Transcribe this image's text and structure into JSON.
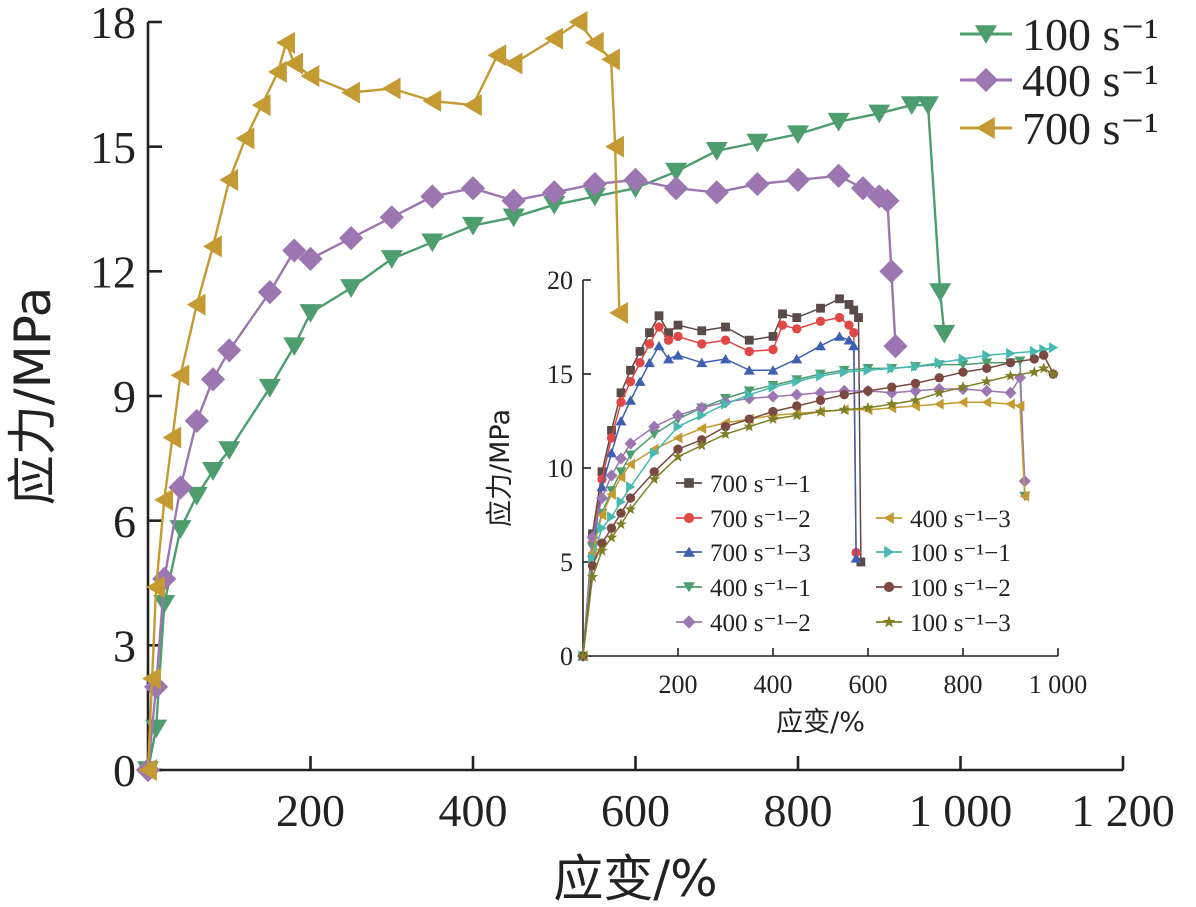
{
  "chart_data": [
    {
      "type": "line",
      "xlabel": "应变/%",
      "ylabel": "应力/MPa",
      "xlim": [
        0,
        1200
      ],
      "ylim": [
        0,
        18
      ],
      "xticks": [
        200,
        400,
        600,
        800,
        1000,
        1200
      ],
      "xtick_labels": [
        "200",
        "400",
        "600",
        "800",
        "1 000",
        "1 200"
      ],
      "yticks": [
        0,
        3,
        6,
        9,
        12,
        15,
        18
      ],
      "ytick_labels": [
        "0",
        "3",
        "6",
        "9",
        "12",
        "15",
        "18"
      ],
      "grid": false,
      "legend_position": "top-right",
      "series": [
        {
          "name": "100 s⁻¹",
          "color": "#4e9d6e",
          "marker": "triangle-down",
          "x": [
            0,
            10,
            20,
            40,
            60,
            80,
            100,
            150,
            180,
            200,
            250,
            300,
            350,
            400,
            450,
            500,
            550,
            600,
            650,
            700,
            750,
            800,
            850,
            900,
            940,
            960,
            975,
            980
          ],
          "y": [
            0,
            1.0,
            4.0,
            5.8,
            6.6,
            7.2,
            7.7,
            9.2,
            10.2,
            11.0,
            11.6,
            12.3,
            12.7,
            13.1,
            13.3,
            13.6,
            13.8,
            14.0,
            14.4,
            14.9,
            15.1,
            15.3,
            15.6,
            15.8,
            16.0,
            16.0,
            11.5,
            10.5
          ]
        },
        {
          "name": "400 s⁻¹",
          "color": "#9b76b1",
          "marker": "diamond",
          "x": [
            0,
            10,
            20,
            40,
            60,
            80,
            100,
            150,
            180,
            200,
            250,
            300,
            350,
            400,
            450,
            500,
            550,
            600,
            650,
            700,
            750,
            800,
            850,
            880,
            900,
            910,
            915,
            920
          ],
          "y": [
            0,
            2.0,
            4.6,
            6.8,
            8.4,
            9.4,
            10.1,
            11.5,
            12.5,
            12.3,
            12.8,
            13.3,
            13.8,
            14.0,
            13.7,
            13.9,
            14.1,
            14.2,
            14.0,
            13.9,
            14.1,
            14.2,
            14.3,
            14.0,
            13.8,
            13.7,
            12.0,
            10.2
          ]
        },
        {
          "name": "700 s⁻¹",
          "color": "#c49a32",
          "marker": "triangle-left",
          "x": [
            0,
            5,
            10,
            20,
            30,
            40,
            60,
            80,
            100,
            120,
            140,
            160,
            170,
            180,
            200,
            250,
            300,
            350,
            400,
            430,
            450,
            500,
            530,
            550,
            570,
            575,
            580
          ],
          "y": [
            0,
            2.2,
            4.4,
            6.5,
            8.0,
            9.5,
            11.2,
            12.6,
            14.2,
            15.2,
            16.0,
            16.8,
            17.5,
            17.0,
            16.7,
            16.3,
            16.4,
            16.1,
            16.0,
            17.2,
            17.0,
            17.6,
            18.0,
            17.5,
            17.1,
            15.0,
            11.0
          ]
        }
      ]
    },
    {
      "type": "line",
      "xlabel": "应变/%",
      "ylabel": "应力/MPa",
      "xlim": [
        0,
        1000
      ],
      "ylim": [
        0,
        20
      ],
      "xticks": [
        200,
        400,
        600,
        800,
        1000
      ],
      "xtick_labels": [
        "200",
        "400",
        "600",
        "800",
        "1 000"
      ],
      "yticks": [
        0,
        5,
        10,
        15,
        20
      ],
      "ytick_labels": [
        "0",
        "5",
        "10",
        "15",
        "20"
      ],
      "grid": false,
      "legend_position": "lower-center",
      "series": [
        {
          "name": "700 s⁻¹−1",
          "color": "#5a4a48",
          "marker": "square",
          "x": [
            0,
            20,
            40,
            60,
            80,
            100,
            120,
            140,
            160,
            180,
            200,
            250,
            300,
            350,
            400,
            420,
            450,
            500,
            540,
            560,
            570,
            580,
            585
          ],
          "y": [
            0,
            6.5,
            9.8,
            12.0,
            14.0,
            15.2,
            16.2,
            17.2,
            18.1,
            17.2,
            17.6,
            17.3,
            17.5,
            16.8,
            17.0,
            18.2,
            18.0,
            18.5,
            19.0,
            18.7,
            18.4,
            18.0,
            5.0
          ]
        },
        {
          "name": "700 s⁻¹−2",
          "color": "#e04848",
          "marker": "circle",
          "x": [
            0,
            20,
            40,
            60,
            80,
            100,
            120,
            140,
            160,
            180,
            200,
            250,
            300,
            350,
            400,
            420,
            450,
            500,
            540,
            560,
            570,
            575
          ],
          "y": [
            0,
            6.0,
            9.4,
            11.6,
            13.5,
            14.6,
            15.6,
            16.6,
            17.5,
            16.8,
            17.0,
            16.6,
            16.8,
            16.2,
            16.3,
            17.6,
            17.4,
            17.8,
            18.0,
            17.6,
            17.2,
            5.5
          ]
        },
        {
          "name": "700 s⁻¹−3",
          "color": "#3f60b0",
          "marker": "triangle-up",
          "x": [
            0,
            20,
            40,
            60,
            80,
            100,
            120,
            140,
            160,
            180,
            200,
            250,
            300,
            350,
            400,
            450,
            500,
            540,
            560,
            570,
            575
          ],
          "y": [
            0,
            5.5,
            9.0,
            10.8,
            12.5,
            13.6,
            14.6,
            15.6,
            16.5,
            15.8,
            16.0,
            15.6,
            15.8,
            15.2,
            15.2,
            15.8,
            16.5,
            17.0,
            16.8,
            16.5,
            5.2
          ]
        },
        {
          "name": "400 s⁻¹−1",
          "color": "#4e9d6e",
          "marker": "triangle-down",
          "x": [
            0,
            20,
            40,
            60,
            80,
            100,
            150,
            200,
            250,
            300,
            350,
            400,
            450,
            500,
            550,
            600,
            650,
            700,
            750,
            800,
            850,
            900,
            920,
            930
          ],
          "y": [
            0,
            5.8,
            7.6,
            8.8,
            9.8,
            10.7,
            11.8,
            12.6,
            13.2,
            13.7,
            14.1,
            14.4,
            14.7,
            15.0,
            15.2,
            15.3,
            15.3,
            15.4,
            15.5,
            15.5,
            15.6,
            15.6,
            15.7,
            8.5
          ]
        },
        {
          "name": "400 s⁻¹−2",
          "color": "#9b76b1",
          "marker": "diamond",
          "x": [
            0,
            20,
            40,
            60,
            80,
            100,
            150,
            200,
            250,
            300,
            350,
            400,
            450,
            500,
            550,
            600,
            650,
            700,
            750,
            800,
            850,
            900,
            920,
            930
          ],
          "y": [
            0,
            6.3,
            8.4,
            9.6,
            10.5,
            11.3,
            12.2,
            12.8,
            13.2,
            13.5,
            13.7,
            13.8,
            13.9,
            14.0,
            14.1,
            14.1,
            14.0,
            14.1,
            14.2,
            14.2,
            14.1,
            14.0,
            14.8,
            9.3
          ]
        },
        {
          "name": "400 s⁻¹−3",
          "color": "#c49a32",
          "marker": "triangle-left",
          "x": [
            0,
            20,
            40,
            60,
            80,
            100,
            150,
            200,
            250,
            300,
            350,
            400,
            450,
            500,
            550,
            600,
            650,
            700,
            750,
            800,
            850,
            900,
            920,
            930
          ],
          "y": [
            0,
            5.5,
            7.5,
            8.6,
            9.5,
            10.2,
            11.0,
            11.6,
            12.1,
            12.4,
            12.6,
            12.8,
            12.9,
            13.0,
            13.1,
            13.1,
            13.2,
            13.3,
            13.4,
            13.5,
            13.5,
            13.4,
            13.3,
            8.5
          ]
        },
        {
          "name": "100 s⁻¹−1",
          "color": "#46b9b0",
          "marker": "triangle-right",
          "x": [
            0,
            20,
            40,
            60,
            80,
            100,
            150,
            200,
            250,
            300,
            350,
            400,
            450,
            500,
            550,
            600,
            650,
            700,
            750,
            800,
            850,
            900,
            950,
            970,
            990
          ],
          "y": [
            0,
            5.2,
            6.8,
            7.4,
            8.2,
            9.0,
            10.8,
            12.2,
            12.8,
            13.4,
            13.9,
            14.3,
            14.6,
            14.9,
            15.1,
            15.2,
            15.3,
            15.4,
            15.6,
            15.8,
            16.0,
            16.1,
            16.2,
            16.3,
            16.4
          ]
        },
        {
          "name": "100 s⁻¹−2",
          "color": "#7a4a42",
          "marker": "circle",
          "x": [
            0,
            20,
            40,
            60,
            80,
            100,
            150,
            200,
            250,
            300,
            350,
            400,
            450,
            500,
            550,
            600,
            650,
            700,
            750,
            800,
            850,
            900,
            950,
            970,
            990
          ],
          "y": [
            0,
            4.8,
            6.0,
            6.8,
            7.6,
            8.4,
            9.8,
            11.0,
            11.5,
            12.2,
            12.6,
            13.0,
            13.3,
            13.6,
            13.9,
            14.1,
            14.3,
            14.5,
            14.8,
            15.1,
            15.3,
            15.6,
            15.8,
            16.0,
            15.0
          ]
        },
        {
          "name": "100 s⁻¹−3",
          "color": "#7f7f28",
          "marker": "star",
          "x": [
            0,
            20,
            40,
            60,
            80,
            100,
            150,
            200,
            250,
            300,
            350,
            400,
            450,
            500,
            550,
            600,
            650,
            700,
            750,
            800,
            850,
            900,
            950,
            970,
            990
          ],
          "y": [
            0,
            4.2,
            5.6,
            6.3,
            7.0,
            7.8,
            9.4,
            10.6,
            11.2,
            11.8,
            12.2,
            12.6,
            12.8,
            13.0,
            13.1,
            13.2,
            13.4,
            13.6,
            14.0,
            14.3,
            14.6,
            14.9,
            15.1,
            15.3,
            15.0
          ]
        }
      ]
    }
  ]
}
